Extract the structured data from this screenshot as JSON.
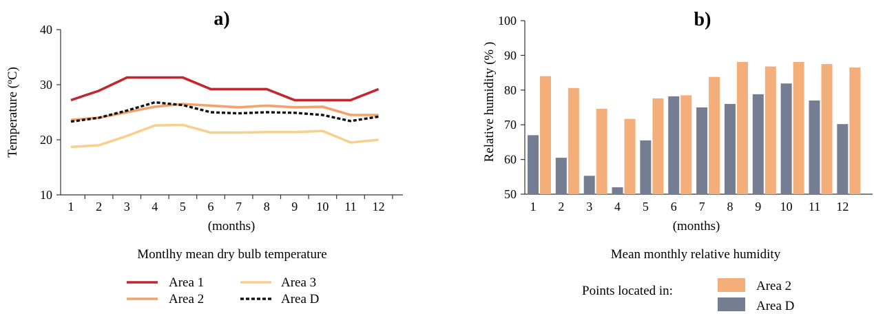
{
  "chart_data": [
    {
      "type": "line",
      "panel_label": "a)",
      "title": "Montlhy mean dry bulb temperature",
      "xlabel": "(months)",
      "ylabel": "Temperature (ºC)",
      "categories": [
        "1",
        "2",
        "3",
        "4",
        "5",
        "6",
        "7",
        "8",
        "9",
        "10",
        "11",
        "12"
      ],
      "ylim": [
        10,
        40
      ],
      "yticks": [
        "10",
        "20",
        "30",
        "40"
      ],
      "grid": false,
      "legend_position": "bottom",
      "series": [
        {
          "name": "Area 1",
          "color": "#c1272d",
          "dash": "solid",
          "values": [
            27.2,
            28.9,
            31.3,
            31.3,
            31.3,
            29.2,
            29.2,
            29.2,
            27.2,
            27.2,
            27.2,
            29.2
          ]
        },
        {
          "name": "Area 2",
          "color": "#f2a26b",
          "dash": "solid",
          "values": [
            23.6,
            24.0,
            25.0,
            26.0,
            26.5,
            26.2,
            25.9,
            26.2,
            25.9,
            26.0,
            24.5,
            24.5
          ]
        },
        {
          "name": "Area 3",
          "color": "#f8d08e",
          "dash": "solid",
          "values": [
            18.7,
            19.0,
            20.7,
            22.6,
            22.7,
            21.3,
            21.3,
            21.4,
            21.4,
            21.6,
            19.5,
            20.0
          ]
        },
        {
          "name": "Area D",
          "color": "#111111",
          "dash": "dotted",
          "values": [
            23.3,
            24.0,
            25.3,
            26.8,
            26.3,
            25.0,
            24.8,
            25.0,
            24.9,
            24.5,
            23.4,
            24.2
          ]
        }
      ]
    },
    {
      "type": "bar",
      "panel_label": "b)",
      "title": "Mean monthly relative humidity",
      "xlabel": "(months)",
      "ylabel": "Relative humidity (% )",
      "categories": [
        "1",
        "2",
        "3",
        "4",
        "5",
        "6",
        "7",
        "8",
        "9",
        "10",
        "11",
        "12"
      ],
      "ylim": [
        50,
        100
      ],
      "yticks": [
        "50",
        "60",
        "70",
        "80",
        "90",
        "100"
      ],
      "grid": false,
      "legend_position": "bottom-right",
      "legend_prefix": "Points located in:",
      "series": [
        {
          "name": "Area 2",
          "color": "#f4ae7a",
          "values": [
            84.0,
            80.6,
            74.6,
            71.7,
            77.6,
            78.5,
            83.8,
            88.1,
            86.8,
            88.1,
            87.5,
            86.5
          ]
        },
        {
          "name": "Area D",
          "color": "#747d92",
          "values": [
            67.0,
            60.5,
            55.3,
            52.0,
            65.5,
            78.2,
            75.0,
            76.0,
            78.8,
            81.9,
            77.0,
            70.2
          ]
        }
      ]
    }
  ]
}
